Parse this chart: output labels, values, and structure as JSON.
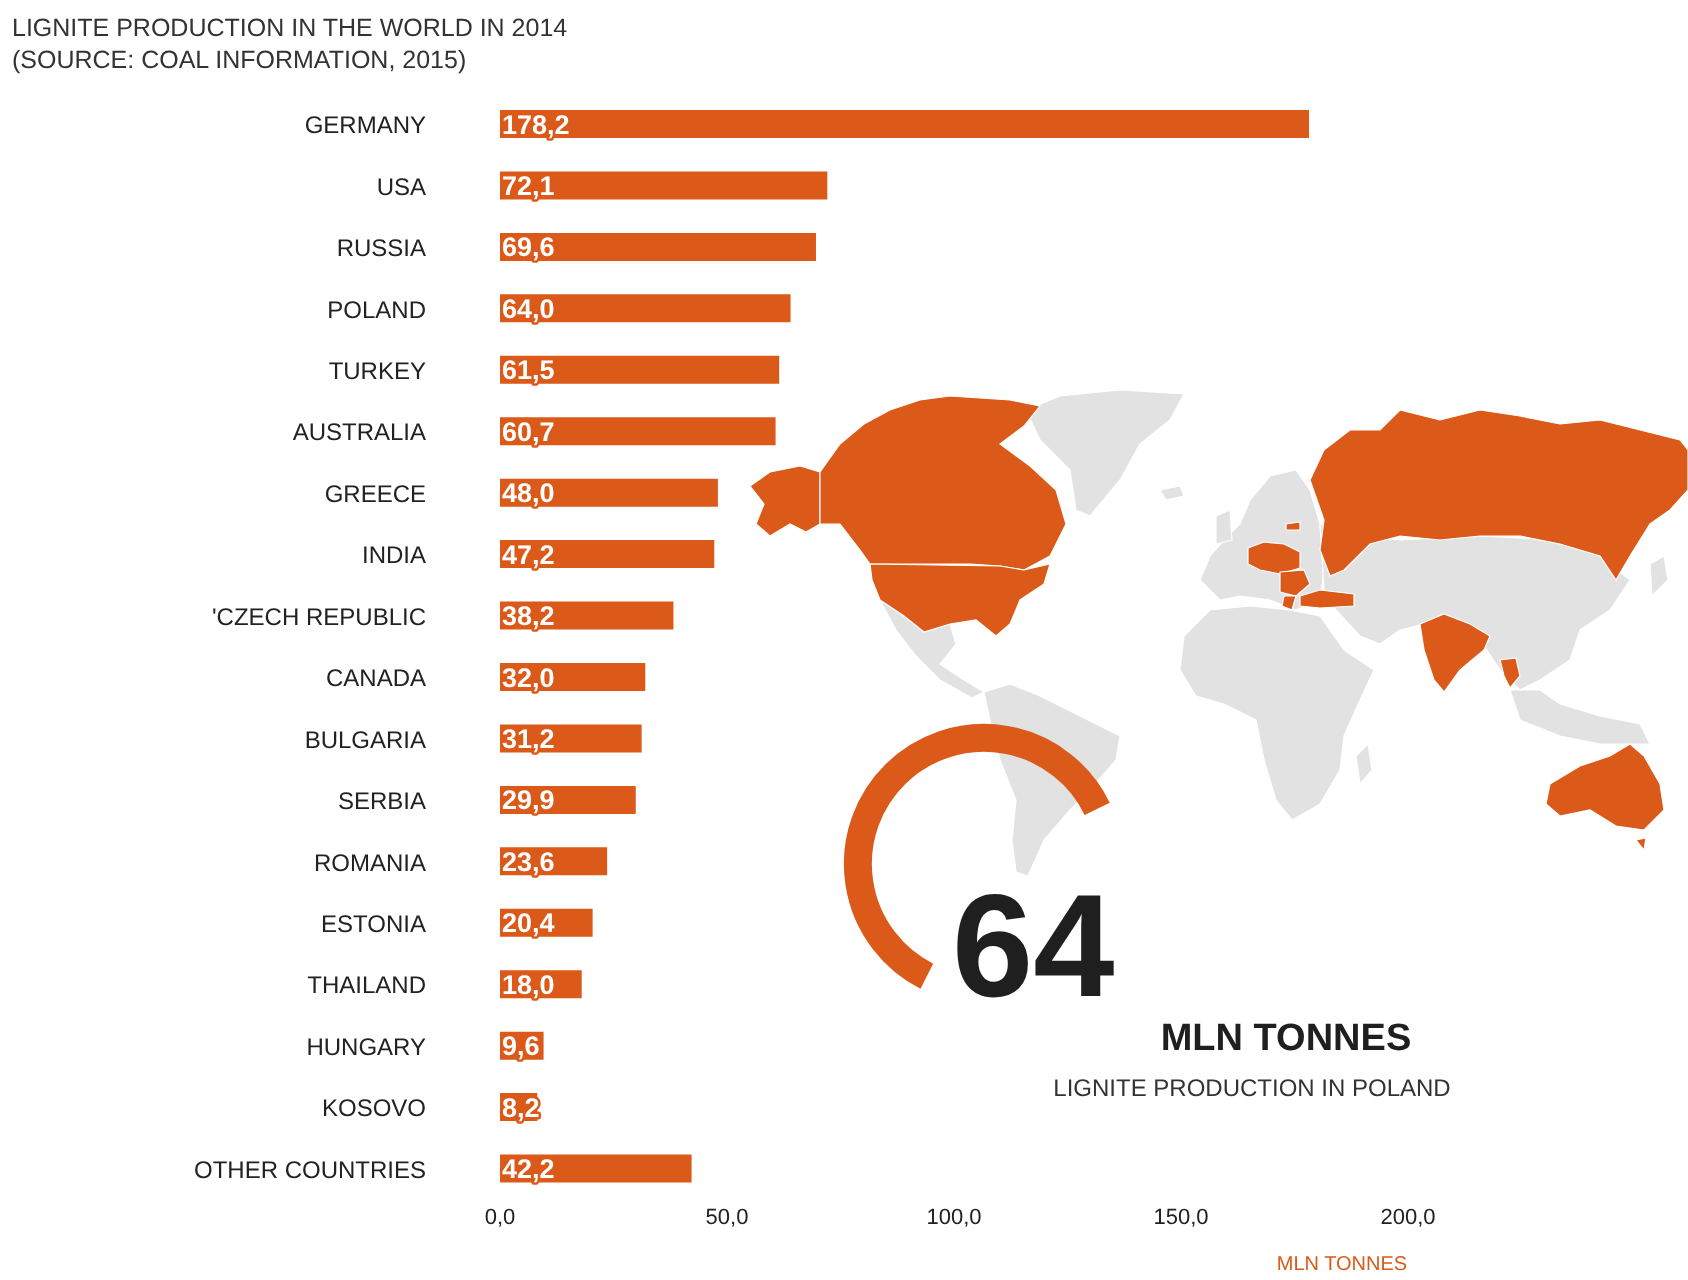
{
  "chart_data": {
    "type": "bar",
    "orientation": "horizontal",
    "title": "LIGNITE PRODUCTION IN THE WORLD IN 2014",
    "subtitle": "(SOURCE: COAL INFORMATION, 2015)",
    "xlabel": "MLN TONNES",
    "categories": [
      "GERMANY",
      "USA",
      "RUSSIA",
      "POLAND",
      "TURKEY",
      "AUSTRALIA",
      "GREECE",
      "INDIA",
      "'CZECH REPUBLIC",
      "CANADA",
      "BULGARIA",
      "SERBIA",
      "ROMANIA",
      "ESTONIA",
      "THAILAND",
      "HUNGARY",
      "KOSOVO",
      "OTHER COUNTRIES"
    ],
    "values": [
      178.2,
      72.1,
      69.6,
      64.0,
      61.5,
      60.7,
      48.0,
      47.2,
      38.2,
      32.0,
      31.2,
      29.9,
      23.6,
      20.4,
      18.0,
      9.6,
      8.2,
      42.2
    ],
    "value_labels": [
      "178,2",
      "72,1",
      "69,6",
      "64,0",
      "61,5",
      "60,7",
      "48,0",
      "47,2",
      "38,2",
      "32,0",
      "31,2",
      "29,9",
      "23,6",
      "20,4",
      "18,0",
      "9,6",
      "8,2",
      "42,2"
    ],
    "color": "#db5a19",
    "xlim": [
      0,
      200
    ],
    "xticks": [
      {
        "value": 0,
        "label": "0,0"
      },
      {
        "value": 50,
        "label": "50,0"
      },
      {
        "value": 100,
        "label": "100,0"
      },
      {
        "value": 150,
        "label": "150,0"
      },
      {
        "value": 200,
        "label": "200,0"
      }
    ],
    "annotations": [
      "64",
      "MLN TONNES",
      "LIGNITE PRODUCTION IN POLAND"
    ]
  }
}
